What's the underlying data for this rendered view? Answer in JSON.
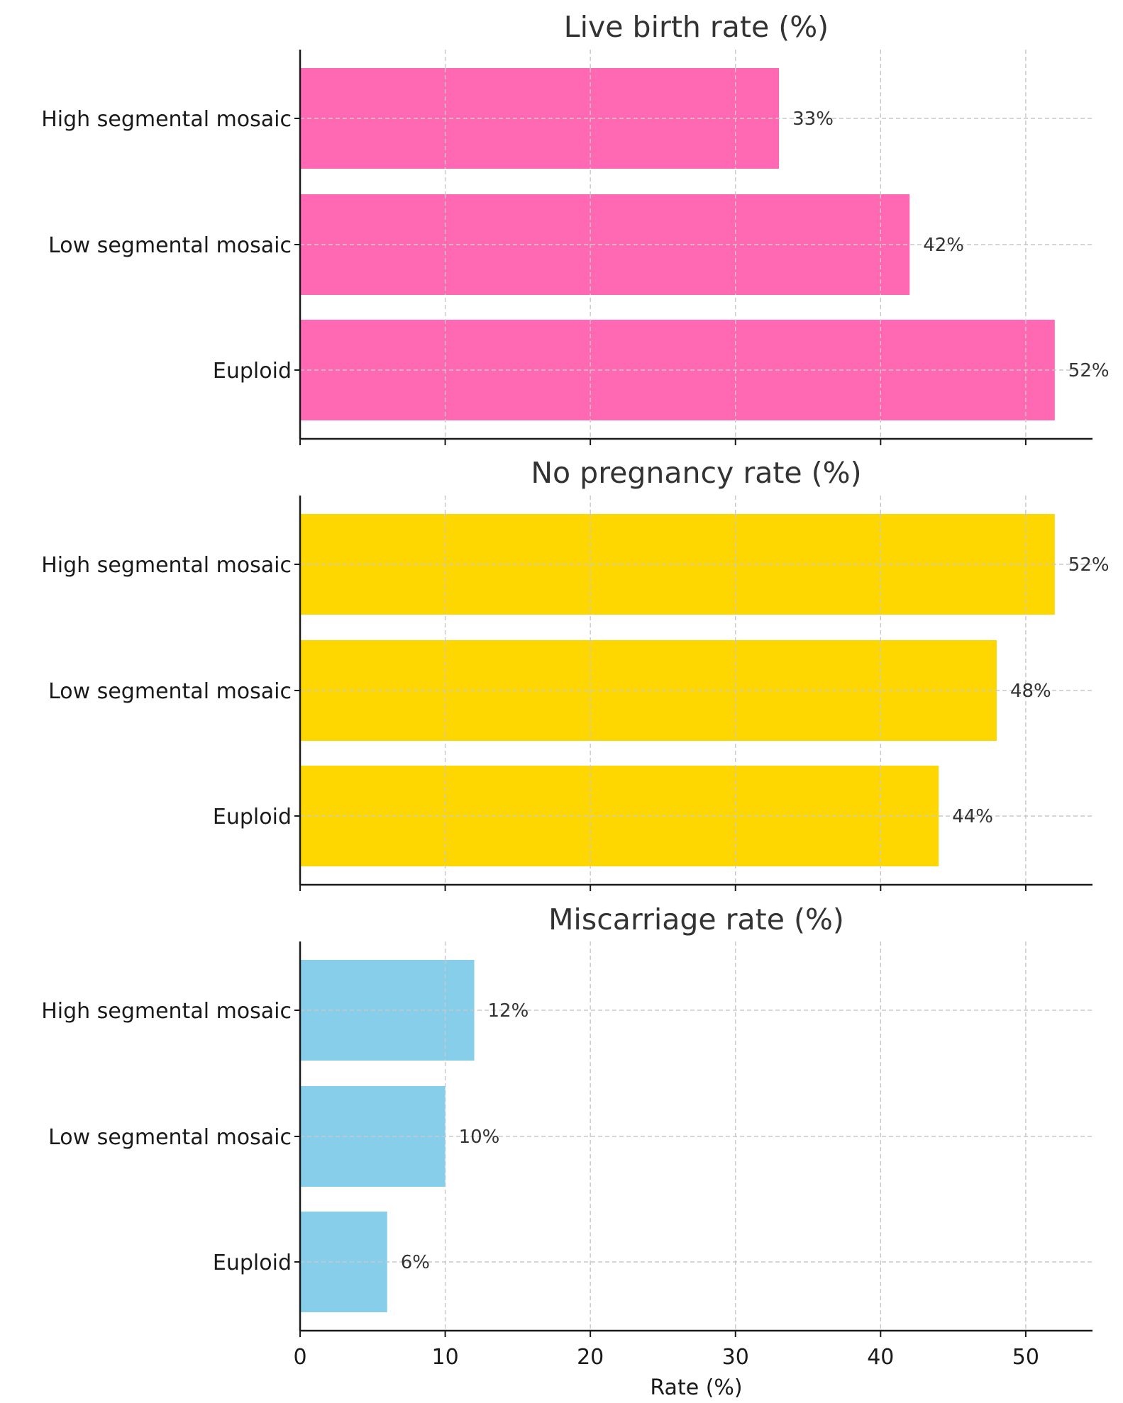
{
  "chart_data": [
    {
      "type": "bar",
      "orientation": "horizontal",
      "title": "Live birth rate (%)",
      "categories": [
        "High segmental mosaic",
        "Low segmental mosaic",
        "Euploid"
      ],
      "values": [
        33,
        42,
        52
      ],
      "value_labels": [
        "33%",
        "42%",
        "52%"
      ],
      "color": "#ff69b4",
      "xlim": [
        0,
        54.6
      ],
      "grid": true
    },
    {
      "type": "bar",
      "orientation": "horizontal",
      "title": "No pregnancy rate (%)",
      "categories": [
        "High segmental mosaic",
        "Low segmental mosaic",
        "Euploid"
      ],
      "values": [
        52,
        48,
        44
      ],
      "value_labels": [
        "52%",
        "48%",
        "44%"
      ],
      "color": "#ffd700",
      "xlim": [
        0,
        54.6
      ],
      "grid": true
    },
    {
      "type": "bar",
      "orientation": "horizontal",
      "title": "Miscarriage rate (%)",
      "categories": [
        "High segmental mosaic",
        "Low segmental mosaic",
        "Euploid"
      ],
      "values": [
        12,
        10,
        6
      ],
      "value_labels": [
        "12%",
        "10%",
        "6%"
      ],
      "color": "#87ceeb",
      "xlim": [
        0,
        54.6
      ],
      "grid": true
    }
  ],
  "shared_x_axis": {
    "ticks": [
      0,
      10,
      20,
      30,
      40,
      50
    ],
    "xlabel": "Rate (%)"
  }
}
